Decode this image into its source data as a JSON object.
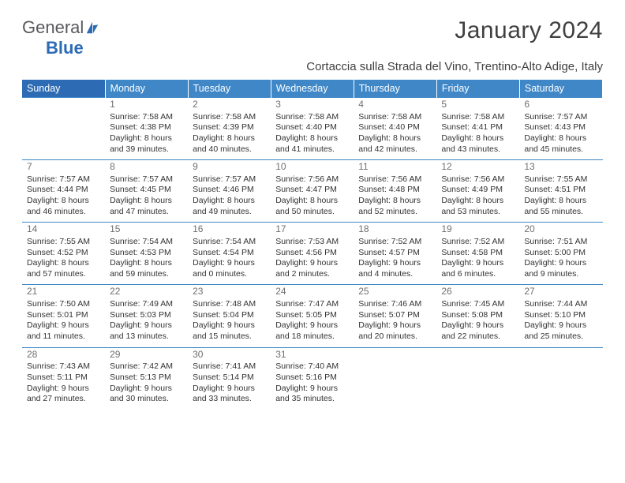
{
  "branding": {
    "logo_word_1": "General",
    "logo_word_2": "Blue",
    "logo_color_1": "#58595b",
    "logo_color_2": "#2d6bb5",
    "icon_color": "#2d6bb5"
  },
  "title": "January 2024",
  "location": "Cortaccia sulla Strada del Vino, Trentino-Alto Adige, Italy",
  "colors": {
    "header_bg": "#3f87c7",
    "header_bg_first": "#2d6bb5",
    "header_text": "#ffffff",
    "row_border": "#3f87c7",
    "daynum": "#707070",
    "body_text": "#333333"
  },
  "day_names": [
    "Sunday",
    "Monday",
    "Tuesday",
    "Wednesday",
    "Thursday",
    "Friday",
    "Saturday"
  ],
  "weeks": [
    [
      {
        "n": "",
        "sr": "",
        "ss": "",
        "d1": "",
        "d2": ""
      },
      {
        "n": "1",
        "sr": "Sunrise: 7:58 AM",
        "ss": "Sunset: 4:38 PM",
        "d1": "Daylight: 8 hours",
        "d2": "and 39 minutes."
      },
      {
        "n": "2",
        "sr": "Sunrise: 7:58 AM",
        "ss": "Sunset: 4:39 PM",
        "d1": "Daylight: 8 hours",
        "d2": "and 40 minutes."
      },
      {
        "n": "3",
        "sr": "Sunrise: 7:58 AM",
        "ss": "Sunset: 4:40 PM",
        "d1": "Daylight: 8 hours",
        "d2": "and 41 minutes."
      },
      {
        "n": "4",
        "sr": "Sunrise: 7:58 AM",
        "ss": "Sunset: 4:40 PM",
        "d1": "Daylight: 8 hours",
        "d2": "and 42 minutes."
      },
      {
        "n": "5",
        "sr": "Sunrise: 7:58 AM",
        "ss": "Sunset: 4:41 PM",
        "d1": "Daylight: 8 hours",
        "d2": "and 43 minutes."
      },
      {
        "n": "6",
        "sr": "Sunrise: 7:57 AM",
        "ss": "Sunset: 4:43 PM",
        "d1": "Daylight: 8 hours",
        "d2": "and 45 minutes."
      }
    ],
    [
      {
        "n": "7",
        "sr": "Sunrise: 7:57 AM",
        "ss": "Sunset: 4:44 PM",
        "d1": "Daylight: 8 hours",
        "d2": "and 46 minutes."
      },
      {
        "n": "8",
        "sr": "Sunrise: 7:57 AM",
        "ss": "Sunset: 4:45 PM",
        "d1": "Daylight: 8 hours",
        "d2": "and 47 minutes."
      },
      {
        "n": "9",
        "sr": "Sunrise: 7:57 AM",
        "ss": "Sunset: 4:46 PM",
        "d1": "Daylight: 8 hours",
        "d2": "and 49 minutes."
      },
      {
        "n": "10",
        "sr": "Sunrise: 7:56 AM",
        "ss": "Sunset: 4:47 PM",
        "d1": "Daylight: 8 hours",
        "d2": "and 50 minutes."
      },
      {
        "n": "11",
        "sr": "Sunrise: 7:56 AM",
        "ss": "Sunset: 4:48 PM",
        "d1": "Daylight: 8 hours",
        "d2": "and 52 minutes."
      },
      {
        "n": "12",
        "sr": "Sunrise: 7:56 AM",
        "ss": "Sunset: 4:49 PM",
        "d1": "Daylight: 8 hours",
        "d2": "and 53 minutes."
      },
      {
        "n": "13",
        "sr": "Sunrise: 7:55 AM",
        "ss": "Sunset: 4:51 PM",
        "d1": "Daylight: 8 hours",
        "d2": "and 55 minutes."
      }
    ],
    [
      {
        "n": "14",
        "sr": "Sunrise: 7:55 AM",
        "ss": "Sunset: 4:52 PM",
        "d1": "Daylight: 8 hours",
        "d2": "and 57 minutes."
      },
      {
        "n": "15",
        "sr": "Sunrise: 7:54 AM",
        "ss": "Sunset: 4:53 PM",
        "d1": "Daylight: 8 hours",
        "d2": "and 59 minutes."
      },
      {
        "n": "16",
        "sr": "Sunrise: 7:54 AM",
        "ss": "Sunset: 4:54 PM",
        "d1": "Daylight: 9 hours",
        "d2": "and 0 minutes."
      },
      {
        "n": "17",
        "sr": "Sunrise: 7:53 AM",
        "ss": "Sunset: 4:56 PM",
        "d1": "Daylight: 9 hours",
        "d2": "and 2 minutes."
      },
      {
        "n": "18",
        "sr": "Sunrise: 7:52 AM",
        "ss": "Sunset: 4:57 PM",
        "d1": "Daylight: 9 hours",
        "d2": "and 4 minutes."
      },
      {
        "n": "19",
        "sr": "Sunrise: 7:52 AM",
        "ss": "Sunset: 4:58 PM",
        "d1": "Daylight: 9 hours",
        "d2": "and 6 minutes."
      },
      {
        "n": "20",
        "sr": "Sunrise: 7:51 AM",
        "ss": "Sunset: 5:00 PM",
        "d1": "Daylight: 9 hours",
        "d2": "and 9 minutes."
      }
    ],
    [
      {
        "n": "21",
        "sr": "Sunrise: 7:50 AM",
        "ss": "Sunset: 5:01 PM",
        "d1": "Daylight: 9 hours",
        "d2": "and 11 minutes."
      },
      {
        "n": "22",
        "sr": "Sunrise: 7:49 AM",
        "ss": "Sunset: 5:03 PM",
        "d1": "Daylight: 9 hours",
        "d2": "and 13 minutes."
      },
      {
        "n": "23",
        "sr": "Sunrise: 7:48 AM",
        "ss": "Sunset: 5:04 PM",
        "d1": "Daylight: 9 hours",
        "d2": "and 15 minutes."
      },
      {
        "n": "24",
        "sr": "Sunrise: 7:47 AM",
        "ss": "Sunset: 5:05 PM",
        "d1": "Daylight: 9 hours",
        "d2": "and 18 minutes."
      },
      {
        "n": "25",
        "sr": "Sunrise: 7:46 AM",
        "ss": "Sunset: 5:07 PM",
        "d1": "Daylight: 9 hours",
        "d2": "and 20 minutes."
      },
      {
        "n": "26",
        "sr": "Sunrise: 7:45 AM",
        "ss": "Sunset: 5:08 PM",
        "d1": "Daylight: 9 hours",
        "d2": "and 22 minutes."
      },
      {
        "n": "27",
        "sr": "Sunrise: 7:44 AM",
        "ss": "Sunset: 5:10 PM",
        "d1": "Daylight: 9 hours",
        "d2": "and 25 minutes."
      }
    ],
    [
      {
        "n": "28",
        "sr": "Sunrise: 7:43 AM",
        "ss": "Sunset: 5:11 PM",
        "d1": "Daylight: 9 hours",
        "d2": "and 27 minutes."
      },
      {
        "n": "29",
        "sr": "Sunrise: 7:42 AM",
        "ss": "Sunset: 5:13 PM",
        "d1": "Daylight: 9 hours",
        "d2": "and 30 minutes."
      },
      {
        "n": "30",
        "sr": "Sunrise: 7:41 AM",
        "ss": "Sunset: 5:14 PM",
        "d1": "Daylight: 9 hours",
        "d2": "and 33 minutes."
      },
      {
        "n": "31",
        "sr": "Sunrise: 7:40 AM",
        "ss": "Sunset: 5:16 PM",
        "d1": "Daylight: 9 hours",
        "d2": "and 35 minutes."
      },
      {
        "n": "",
        "sr": "",
        "ss": "",
        "d1": "",
        "d2": ""
      },
      {
        "n": "",
        "sr": "",
        "ss": "",
        "d1": "",
        "d2": ""
      },
      {
        "n": "",
        "sr": "",
        "ss": "",
        "d1": "",
        "d2": ""
      }
    ]
  ]
}
